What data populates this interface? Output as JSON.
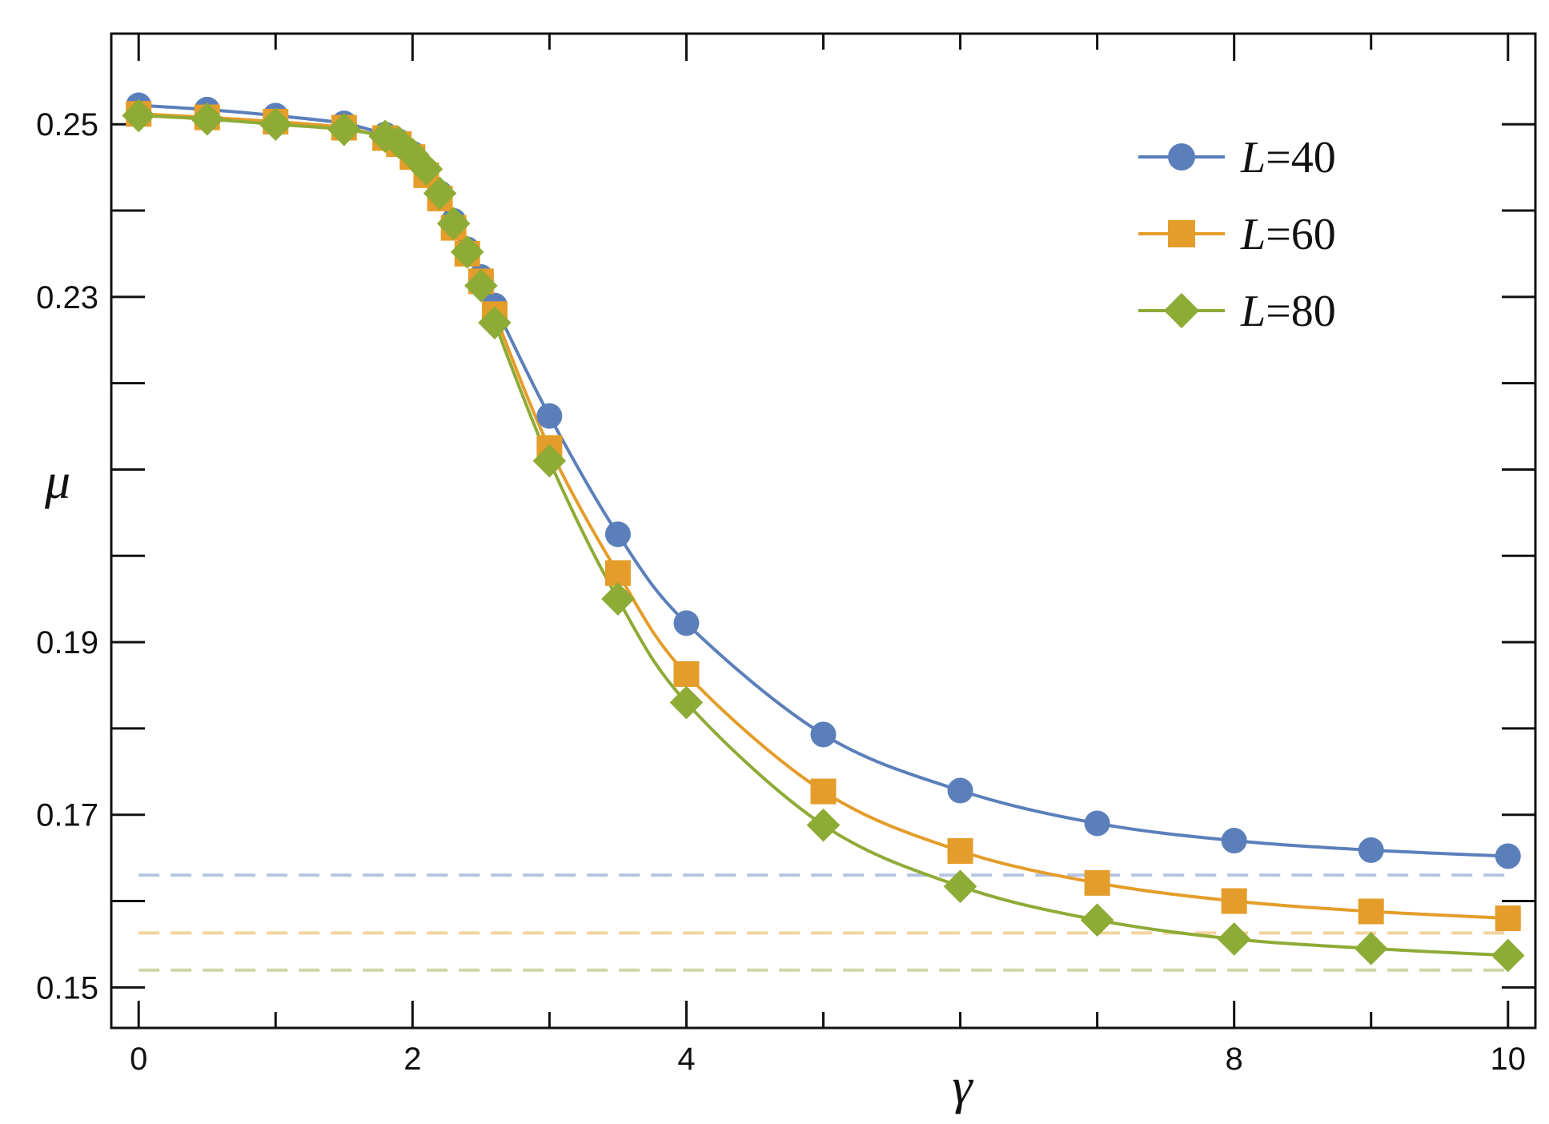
{
  "chart_data": {
    "type": "line",
    "xlabel": "γ",
    "ylabel": "μ",
    "xlim": [
      -0.2,
      10.2
    ],
    "ylim": [
      0.1453,
      0.2605
    ],
    "x_ticks": [
      {
        "value": 0,
        "label": "0"
      },
      {
        "value": 2,
        "label": "2"
      },
      {
        "value": 4,
        "label": "4"
      },
      {
        "value": 8,
        "label": "8"
      },
      {
        "value": 10,
        "label": "10"
      }
    ],
    "x_minor_ticks": [
      1,
      3,
      5,
      6,
      7,
      9
    ],
    "y_ticks": [
      {
        "value": 0.15,
        "label": "0.15"
      },
      {
        "value": 0.17,
        "label": "0.17"
      },
      {
        "value": 0.19,
        "label": "0.19"
      },
      {
        "value": 0.23,
        "label": "0.23"
      },
      {
        "value": 0.25,
        "label": "0.25"
      }
    ],
    "y_minor_ticks": [
      0.16,
      0.18,
      0.2,
      0.21,
      0.22,
      0.24
    ],
    "legend_position": "top-right",
    "series": [
      {
        "name": "L=40",
        "legend_prefix": "L",
        "legend_suffix": "=40",
        "color": "#5b7fba",
        "marker": "circle",
        "x": [
          0,
          0.5,
          1,
          1.5,
          1.8,
          1.9,
          2.0,
          2.1,
          2.2,
          2.3,
          2.4,
          2.5,
          2.6,
          3,
          3.5,
          4,
          5,
          6,
          7,
          8,
          9,
          10
        ],
        "y": [
          0.2522,
          0.2517,
          0.251,
          0.2501,
          0.2488,
          0.248,
          0.2466,
          0.2446,
          0.242,
          0.2388,
          0.2355,
          0.2323,
          0.229,
          0.2162,
          0.2025,
          0.1922,
          0.1793,
          0.1728,
          0.169,
          0.167,
          0.1659,
          0.1652
        ],
        "asymptote": 0.163
      },
      {
        "name": "L=60",
        "legend_prefix": "L",
        "legend_suffix": "=60",
        "color": "#e49d2a",
        "marker": "square",
        "x": [
          0,
          0.5,
          1,
          1.5,
          1.8,
          1.9,
          2.0,
          2.1,
          2.2,
          2.3,
          2.4,
          2.5,
          2.6,
          3,
          3.5,
          4,
          5,
          6,
          7,
          8,
          9,
          10
        ],
        "y": [
          0.2512,
          0.2508,
          0.2503,
          0.2496,
          0.2484,
          0.2477,
          0.2462,
          0.2441,
          0.2414,
          0.238,
          0.235,
          0.2318,
          0.228,
          0.2125,
          0.198,
          0.1863,
          0.1727,
          0.1658,
          0.1621,
          0.16,
          0.1588,
          0.158
        ],
        "asymptote": 0.1563
      },
      {
        "name": "L=80",
        "legend_prefix": "L",
        "legend_suffix": "=80",
        "color": "#8eab36",
        "marker": "diamond",
        "x": [
          0,
          0.5,
          1,
          1.5,
          1.8,
          1.9,
          2.0,
          2.1,
          2.2,
          2.3,
          2.4,
          2.5,
          2.6,
          3,
          3.5,
          4,
          5,
          6,
          7,
          8,
          9,
          10
        ],
        "y": [
          0.251,
          0.2506,
          0.25,
          0.2494,
          0.2486,
          0.2479,
          0.2465,
          0.2448,
          0.242,
          0.2385,
          0.2352,
          0.2313,
          0.227,
          0.211,
          0.195,
          0.183,
          0.1688,
          0.1617,
          0.1578,
          0.1556,
          0.1545,
          0.1537
        ],
        "asymptote": 0.152
      }
    ]
  }
}
